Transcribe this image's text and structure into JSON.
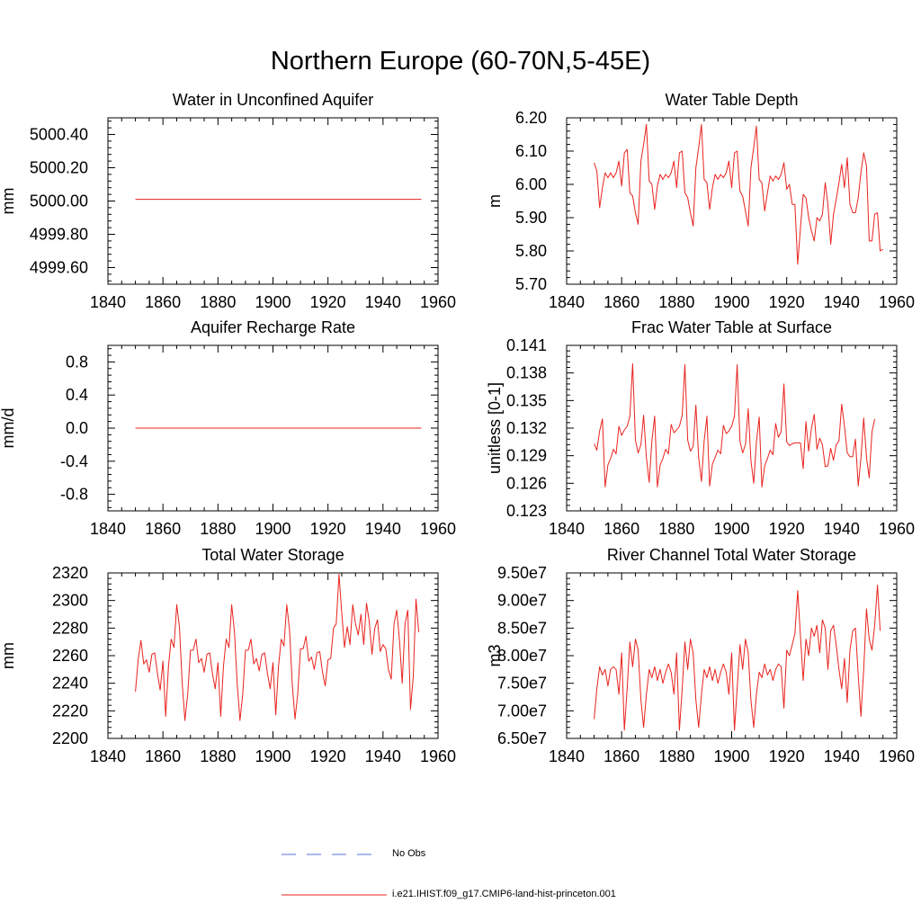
{
  "title": "Northern Europe (60-70N,5-45E)",
  "colors": {
    "model": "#e8231e",
    "obs": "#5a6fd8",
    "axis": "#000000"
  },
  "legend": {
    "obs_label": "No Obs",
    "model_label": "i.e21.IHIST.f09_g17.CMIP6-land-hist-princeton.001"
  },
  "chart_data": [
    {
      "type": "line",
      "title": "Water in Unconfined Aquifer",
      "ylabel": "mm",
      "xlim": [
        1840,
        1960
      ],
      "ylim": [
        4999.5,
        5000.5
      ],
      "xticks": [
        1840,
        1860,
        1880,
        1900,
        1920,
        1940,
        1960
      ],
      "yticks": [
        "4999.60",
        "4999.80",
        "5000.00",
        "5000.20",
        "5000.40"
      ],
      "series": [
        {
          "x": [
            1850,
            1954
          ],
          "y": [
            5000.01,
            5000.01
          ]
        }
      ]
    },
    {
      "type": "line",
      "title": "Water Table Depth",
      "ylabel": "m",
      "xlim": [
        1840,
        1960
      ],
      "ylim": [
        5.7,
        6.2
      ],
      "xticks": [
        1840,
        1860,
        1880,
        1900,
        1920,
        1940,
        1960
      ],
      "yticks": [
        "5.70",
        "5.80",
        "5.90",
        "6.00",
        "6.10",
        "6.20"
      ],
      "series": [
        {
          "x0": 1850,
          "y": [
            6.065,
            6.04,
            5.93,
            5.99,
            6.035,
            6.02,
            6.035,
            6.02,
            6.035,
            6.07,
            5.995,
            6.095,
            6.105,
            5.975,
            5.965,
            5.915,
            5.88,
            6.07,
            6.12,
            6.18,
            6.01,
            6.0,
            5.925,
            5.995,
            6.03,
            6.015,
            6.03,
            6.02,
            6.035,
            6.07,
            5.99,
            6.095,
            6.1,
            5.975,
            5.96,
            5.915,
            5.875,
            6.05,
            6.11,
            6.18,
            6.015,
            6.005,
            5.925,
            5.99,
            6.03,
            6.015,
            6.03,
            6.02,
            6.035,
            6.07,
            5.99,
            6.095,
            6.1,
            5.98,
            5.965,
            5.92,
            5.875,
            6.05,
            6.11,
            6.175,
            6.015,
            6.005,
            5.92,
            5.975,
            6.025,
            6.01,
            6.025,
            6.015,
            6.03,
            6.065,
            5.985,
            6.0,
            5.94,
            5.94,
            5.76,
            5.87,
            5.97,
            5.96,
            5.9,
            5.86,
            5.83,
            5.9,
            5.89,
            5.91,
            6.005,
            5.94,
            5.82,
            5.91,
            5.955,
            6.005,
            6.06,
            5.99,
            6.08,
            5.94,
            5.915,
            5.915,
            5.96,
            6.035,
            6.095,
            6.055,
            5.83,
            5.83,
            5.91,
            5.915,
            5.8,
            5.805
          ]
        }
      ]
    },
    {
      "type": "line",
      "title": "Aquifer Recharge Rate",
      "ylabel": "mm/d",
      "xlim": [
        1840,
        1960
      ],
      "ylim": [
        -1.0,
        1.0
      ],
      "xticks": [
        1840,
        1860,
        1880,
        1900,
        1920,
        1940,
        1960
      ],
      "yticks": [
        "-0.8",
        "-0.4",
        "0.0",
        "0.4",
        "0.8"
      ],
      "series": [
        {
          "x": [
            1850,
            1954
          ],
          "y": [
            0.0,
            0.0
          ]
        }
      ]
    },
    {
      "type": "line",
      "title": "Frac Water Table at Surface",
      "ylabel": "unitless [0-1]",
      "xlim": [
        1840,
        1960
      ],
      "ylim": [
        0.123,
        0.141
      ],
      "xticks": [
        1840,
        1860,
        1880,
        1900,
        1920,
        1940,
        1960
      ],
      "yticks": [
        "0.123",
        "0.126",
        "0.129",
        "0.132",
        "0.135",
        "0.138",
        "0.141"
      ],
      "series": [
        {
          "x0": 1850,
          "y": [
            0.1303,
            0.1296,
            0.1317,
            0.133,
            0.1256,
            0.128,
            0.1287,
            0.1297,
            0.1292,
            0.1322,
            0.1312,
            0.1318,
            0.1322,
            0.1333,
            0.139,
            0.1307,
            0.1293,
            0.1302,
            0.1334,
            0.1288,
            0.1261,
            0.1306,
            0.1333,
            0.1256,
            0.128,
            0.1287,
            0.1297,
            0.1292,
            0.1324,
            0.1315,
            0.1318,
            0.1322,
            0.1334,
            0.1389,
            0.1307,
            0.1295,
            0.13,
            0.1345,
            0.1288,
            0.1262,
            0.1306,
            0.1333,
            0.1257,
            0.1281,
            0.1288,
            0.1296,
            0.1292,
            0.1323,
            0.1314,
            0.1317,
            0.1322,
            0.1333,
            0.1389,
            0.1306,
            0.1293,
            0.1302,
            0.1341,
            0.1285,
            0.126,
            0.1305,
            0.1332,
            0.1256,
            0.1279,
            0.1287,
            0.1296,
            0.1291,
            0.1325,
            0.131,
            0.1316,
            0.1368,
            0.1305,
            0.1301,
            0.1303,
            0.1304,
            0.1304,
            0.1304,
            0.1276,
            0.1327,
            0.1295,
            0.132,
            0.1335,
            0.1297,
            0.1309,
            0.1302,
            0.1278,
            0.1279,
            0.1298,
            0.1285,
            0.1302,
            0.1306,
            0.1346,
            0.1322,
            0.1293,
            0.1289,
            0.1289,
            0.1308,
            0.1257,
            0.1287,
            0.1331,
            0.1288,
            0.1266,
            0.1316,
            0.133
          ]
        }
      ]
    },
    {
      "type": "line",
      "title": "Total Water Storage",
      "ylabel": "mm",
      "xlim": [
        1840,
        1960
      ],
      "ylim": [
        2200,
        2320
      ],
      "xticks": [
        1840,
        1860,
        1880,
        1900,
        1920,
        1940,
        1960
      ],
      "yticks": [
        "2200",
        "2220",
        "2240",
        "2260",
        "2280",
        "2300",
        "2320"
      ],
      "series": [
        {
          "x0": 1850,
          "y": [
            2234,
            2257,
            2271,
            2254,
            2257,
            2248,
            2261,
            2262,
            2247,
            2235,
            2256,
            2216,
            2252,
            2272,
            2266,
            2297,
            2281,
            2240,
            2213,
            2232,
            2264,
            2264,
            2272,
            2255,
            2258,
            2248,
            2261,
            2262,
            2247,
            2236,
            2255,
            2216,
            2252,
            2272,
            2266,
            2297,
            2277,
            2240,
            2213,
            2232,
            2264,
            2264,
            2272,
            2254,
            2258,
            2249,
            2261,
            2262,
            2247,
            2236,
            2255,
            2217,
            2252,
            2272,
            2267,
            2297,
            2279,
            2240,
            2214,
            2232,
            2265,
            2265,
            2274,
            2256,
            2259,
            2250,
            2262,
            2263,
            2248,
            2238,
            2257,
            2258,
            2280,
            2283,
            2319,
            2291,
            2266,
            2281,
            2268,
            2297,
            2283,
            2275,
            2290,
            2268,
            2298,
            2285,
            2261,
            2280,
            2286,
            2263,
            2268,
            2265,
            2250,
            2243,
            2283,
            2293,
            2271,
            2240,
            2283,
            2293,
            2221,
            2245,
            2301,
            2277
          ]
        }
      ]
    },
    {
      "type": "line",
      "title": "River Channel Total Water Storage",
      "ylabel": "m3",
      "xlim": [
        1840,
        1960
      ],
      "ylim": [
        65000000,
        95000000
      ],
      "xticks": [
        1840,
        1860,
        1880,
        1900,
        1920,
        1940,
        1960
      ],
      "yticks": [
        "6.50e7",
        "7.00e7",
        "7.50e7",
        "8.00e7",
        "8.50e7",
        "9.00e7",
        "9.50e7"
      ],
      "series": [
        {
          "x0": 1850,
          "y": [
            68500000,
            74000000,
            78000000,
            76500000,
            77500000,
            74500000,
            77500000,
            78000000,
            77500000,
            73000000,
            80500000,
            66500000,
            74000000,
            82500000,
            78000000,
            83000000,
            81000000,
            72000000,
            67000000,
            73000000,
            77500000,
            76000000,
            78000000,
            75500000,
            77500000,
            75000000,
            77000000,
            78500000,
            77000000,
            73000000,
            80500000,
            66500000,
            74000000,
            82500000,
            77500000,
            83000000,
            80500000,
            72000000,
            67000000,
            73000000,
            77500000,
            76000000,
            78000000,
            75500000,
            77500000,
            75000000,
            77000000,
            78500000,
            77000000,
            73000000,
            80500000,
            66500000,
            74000000,
            82000000,
            77500000,
            83000000,
            80500000,
            72000000,
            67000000,
            73000000,
            77000000,
            76000000,
            78500000,
            76500000,
            77500000,
            75500000,
            77500000,
            78500000,
            78000000,
            70500000,
            81000000,
            80000000,
            82000000,
            84000000,
            91800000,
            83500000,
            75500000,
            83000000,
            80000000,
            85000000,
            83500000,
            85500000,
            80500000,
            86500000,
            85000000,
            77500000,
            84500000,
            85500000,
            82000000,
            77500000,
            74000000,
            79500000,
            71500000,
            81000000,
            84500000,
            85000000,
            76500000,
            69000000,
            77500000,
            88500000,
            83000000,
            81000000,
            85500000,
            92800000,
            84500000
          ]
        }
      ]
    }
  ]
}
